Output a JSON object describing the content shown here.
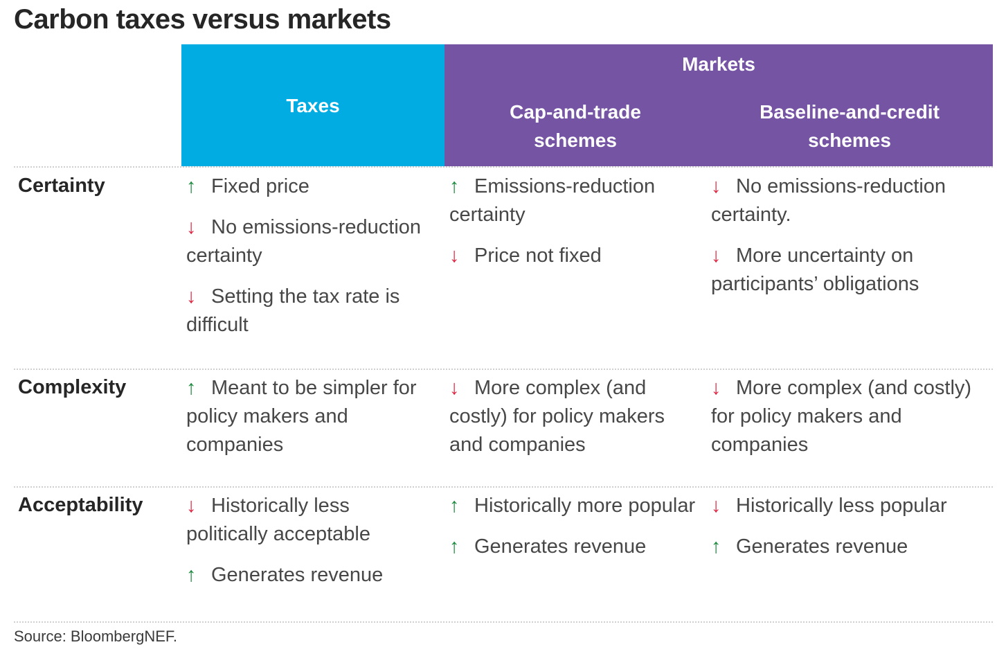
{
  "title": "Carbon taxes versus markets",
  "header": {
    "taxes": "Taxes",
    "markets": "Markets",
    "cap_and_trade": [
      "Cap-and-trade",
      "schemes"
    ],
    "baseline_and_credit": [
      "Baseline-and-credit",
      "schemes"
    ]
  },
  "colors": {
    "taxes_header": "#00ace2",
    "markets_header": "#7554a3",
    "arrow_up": "#1a8a3c",
    "arrow_down": "#e0233f"
  },
  "icons": {
    "up": "arrow-up-icon",
    "down": "arrow-down-icon"
  },
  "rows": [
    {
      "label": "Certainty",
      "taxes": [
        {
          "dir": "up",
          "text": "Fixed price"
        },
        {
          "dir": "down",
          "text": "No emissions-reduction certainty"
        },
        {
          "dir": "down",
          "text": "Setting the tax rate is difficult"
        }
      ],
      "cap_and_trade": [
        {
          "dir": "up",
          "text": "Emissions-reduction certainty"
        },
        {
          "dir": "down",
          "text": "Price not fixed"
        }
      ],
      "baseline_and_credit": [
        {
          "dir": "down",
          "text": "No emissions-reduction certainty."
        },
        {
          "dir": "down",
          "text": "More uncertainty on participants’ obligations"
        }
      ]
    },
    {
      "label": "Complexity",
      "taxes": [
        {
          "dir": "up",
          "text": "Meant to be simpler for policy makers and companies"
        }
      ],
      "cap_and_trade": [
        {
          "dir": "down",
          "text": "More complex (and costly) for policy makers and companies"
        }
      ],
      "baseline_and_credit": [
        {
          "dir": "down",
          "text": "More complex (and costly) for policy makers and companies"
        }
      ]
    },
    {
      "label": "Acceptability",
      "taxes": [
        {
          "dir": "down",
          "text": "Historically less politically acceptable"
        },
        {
          "dir": "up",
          "text": "Generates revenue"
        }
      ],
      "cap_and_trade": [
        {
          "dir": "up",
          "text": "Historically more popular"
        },
        {
          "dir": "up",
          "text": "Generates revenue"
        }
      ],
      "baseline_and_credit": [
        {
          "dir": "down",
          "text": "Historically less popular"
        },
        {
          "dir": "up",
          "text": "Generates revenue"
        }
      ]
    }
  ],
  "source": "Source: BloombergNEF."
}
